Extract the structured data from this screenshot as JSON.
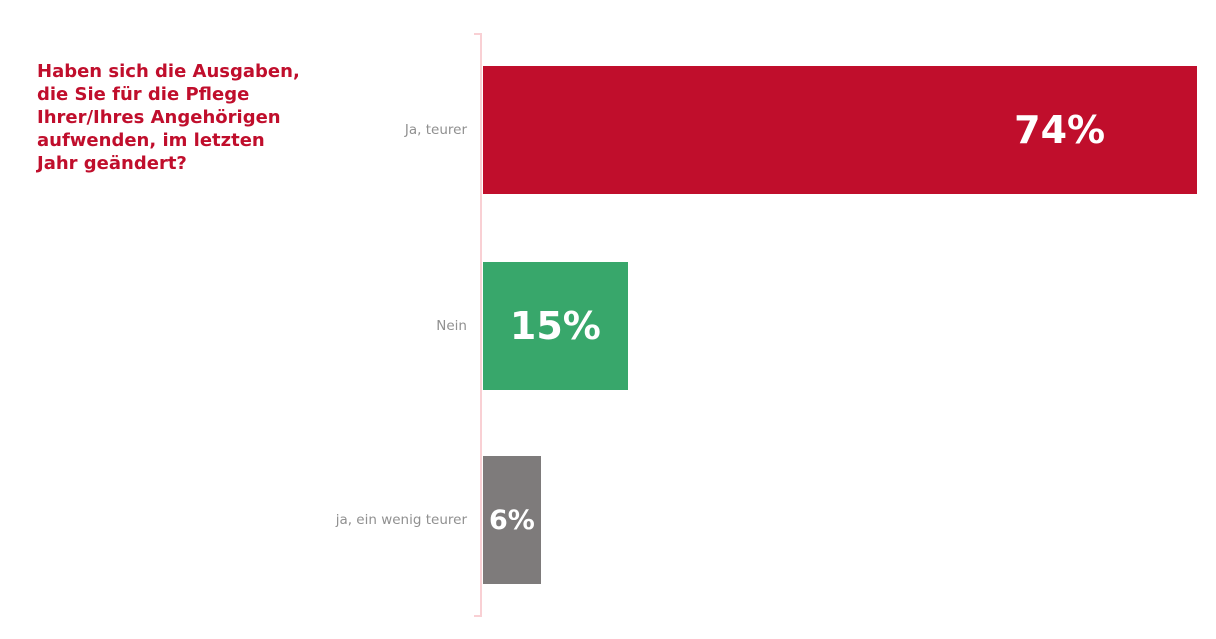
{
  "chart_data": {
    "type": "bar",
    "orientation": "horizontal",
    "title": "Haben sich die Ausgaben, die Sie für die Pflege Ihrer/Ihres Angehörigen aufwenden, im letzten Jahr geändert?",
    "title_lines": [
      "Haben sich die Ausgaben,",
      "die Sie für die Pflege",
      "Ihrer/Ihres Angehörigen",
      "aufwenden, im letzten",
      "Jahr geändert?"
    ],
    "categories": [
      "Ja, teurer",
      "Nein",
      "ja, ein wenig teurer"
    ],
    "values": [
      74,
      15,
      6
    ],
    "value_labels": [
      "74%",
      "15%",
      "6%"
    ],
    "colors": {
      "bars": [
        "#c00e2c",
        "#38a76b",
        "#7e7b7b"
      ],
      "title": "#c00e2c",
      "category_labels": "#909090",
      "value_labels": "#ffffff",
      "axis_line": "#f9d0d4",
      "background": "#ffffff"
    },
    "xlabel": "",
    "ylabel": "",
    "grid": false,
    "legend": false
  }
}
